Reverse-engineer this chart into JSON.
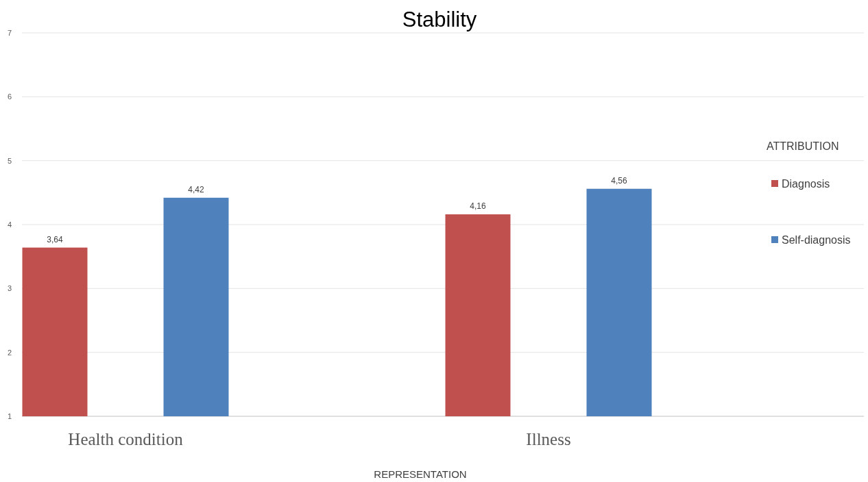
{
  "chart_data": {
    "type": "bar",
    "title": "Stability",
    "xlabel": "REPRESENTATION",
    "legend_title": "ATTRIBUTION",
    "categories": [
      "Health condition",
      "Illness"
    ],
    "series": [
      {
        "name": "Diagnosis",
        "color": "#c0504d",
        "values": [
          3.64,
          4.16
        ],
        "value_labels": [
          "3,64",
          "4,16"
        ]
      },
      {
        "name": "Self-diagnosis",
        "color": "#4f81bd",
        "values": [
          4.42,
          4.56
        ],
        "value_labels": [
          "4,42",
          "4,56"
        ]
      }
    ],
    "ylim": [
      1,
      7
    ],
    "yticks": [
      1,
      2,
      3,
      4,
      5,
      6,
      7
    ],
    "grid": "y",
    "legend": "right"
  }
}
